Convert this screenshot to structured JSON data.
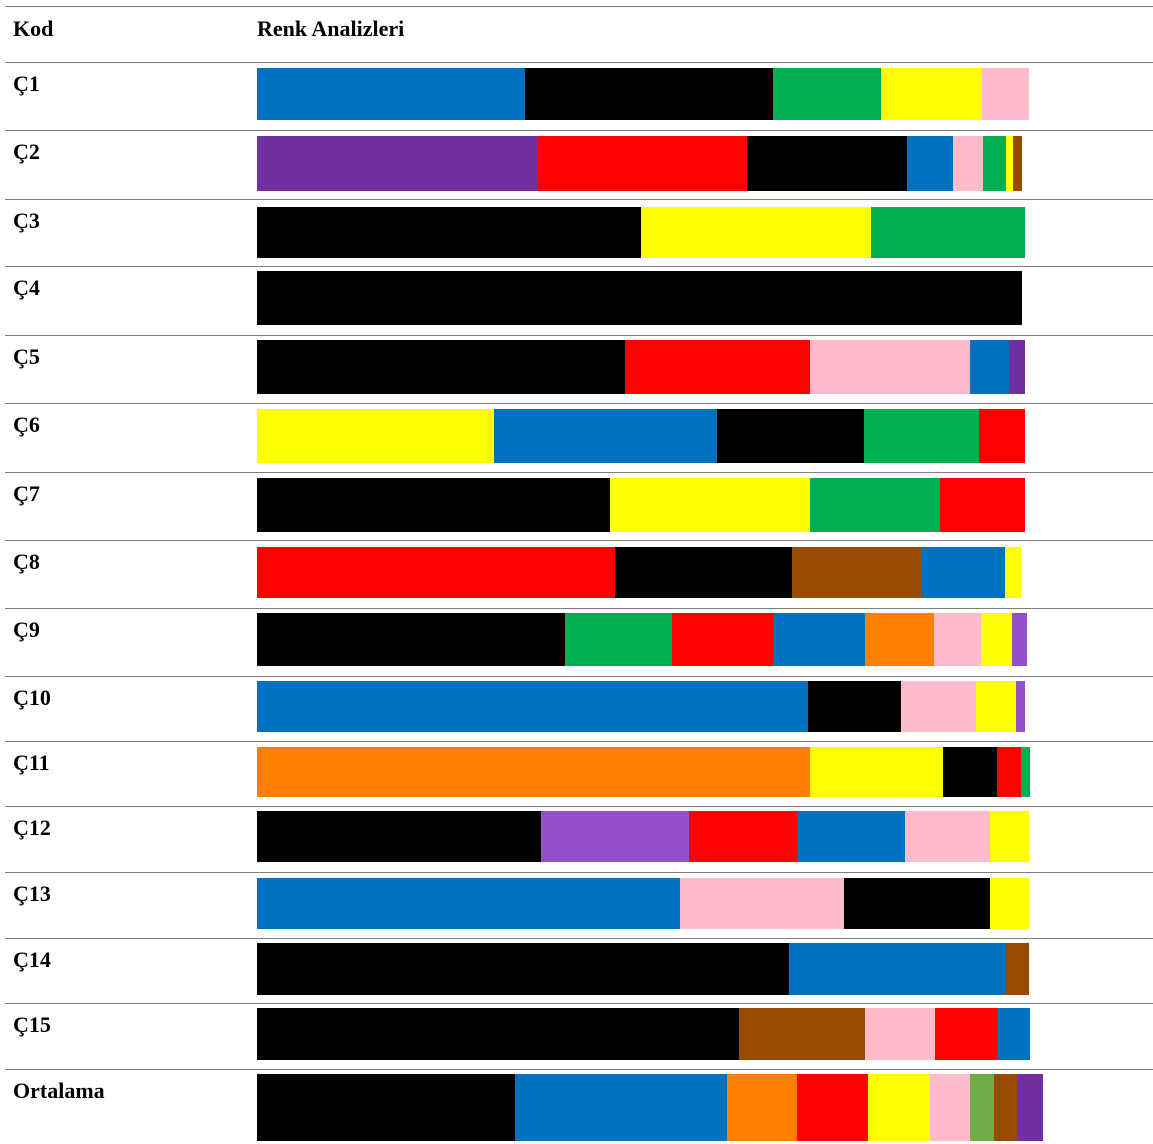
{
  "chart_data": {
    "type": "bar",
    "stacked": true,
    "orientation": "horizontal",
    "headers": {
      "code": "Kod",
      "analysis": "Renk Analizleri"
    },
    "palette": {
      "blue": "#0070C0",
      "black": "#000000",
      "green": "#00B050",
      "yellow": "#FFFF00",
      "pink": "#FFBBCC",
      "purple": "#7030A0",
      "red": "#FF0000",
      "orange": "#FF8000",
      "brown": "#984B00",
      "violet": "#9450C8",
      "olive": "#70AD47"
    },
    "rows": [
      {
        "code": "Ç1",
        "segments": [
          {
            "color": "blue",
            "value": 35.0
          },
          {
            "color": "black",
            "value": 32.3
          },
          {
            "color": "green",
            "value": 14.1
          },
          {
            "color": "yellow",
            "value": 13.1
          },
          {
            "color": "pink",
            "value": 6.1
          }
        ]
      },
      {
        "code": "Ç2",
        "segments": [
          {
            "color": "purple",
            "value": 36.7
          },
          {
            "color": "red",
            "value": 27.2
          },
          {
            "color": "black",
            "value": 20.8
          },
          {
            "color": "blue",
            "value": 6.0
          },
          {
            "color": "pink",
            "value": 4.0
          },
          {
            "color": "green",
            "value": 2.9
          },
          {
            "color": "yellow",
            "value": 1.0
          },
          {
            "color": "brown",
            "value": 1.2
          }
        ]
      },
      {
        "code": "Ç3",
        "segments": [
          {
            "color": "black",
            "value": 50.0
          },
          {
            "color": "yellow",
            "value": 30.0
          },
          {
            "color": "green",
            "value": 20.1
          }
        ]
      },
      {
        "code": "Ç4",
        "segments": [
          {
            "color": "black",
            "value": 99.7
          }
        ]
      },
      {
        "code": "Ç5",
        "segments": [
          {
            "color": "black",
            "value": 48.0
          },
          {
            "color": "red",
            "value": 24.1
          },
          {
            "color": "pink",
            "value": 20.8
          },
          {
            "color": "blue",
            "value": 5.1
          },
          {
            "color": "purple",
            "value": 2.1
          }
        ]
      },
      {
        "code": "Ç6",
        "segments": [
          {
            "color": "yellow",
            "value": 30.9
          },
          {
            "color": "blue",
            "value": 29.1
          },
          {
            "color": "black",
            "value": 19.1
          },
          {
            "color": "green",
            "value": 15.0
          },
          {
            "color": "red",
            "value": 6.0
          }
        ]
      },
      {
        "code": "Ç7",
        "segments": [
          {
            "color": "black",
            "value": 46.0
          },
          {
            "color": "yellow",
            "value": 26.1
          },
          {
            "color": "green",
            "value": 17.0
          },
          {
            "color": "red",
            "value": 11.1
          }
        ]
      },
      {
        "code": "Ç8",
        "segments": [
          {
            "color": "red",
            "value": 46.7
          },
          {
            "color": "black",
            "value": 23.0
          },
          {
            "color": "brown",
            "value": 17.0
          },
          {
            "color": "blue",
            "value": 10.8
          },
          {
            "color": "yellow",
            "value": 2.1
          }
        ]
      },
      {
        "code": "Ç9",
        "segments": [
          {
            "color": "black",
            "value": 40.1
          },
          {
            "color": "green",
            "value": 14.0
          },
          {
            "color": "red",
            "value": 13.2
          },
          {
            "color": "blue",
            "value": 12.0
          },
          {
            "color": "orange",
            "value": 9.0
          },
          {
            "color": "pink",
            "value": 6.1
          },
          {
            "color": "yellow",
            "value": 4.0
          },
          {
            "color": "violet",
            "value": 2.0
          }
        ]
      },
      {
        "code": "Ç10",
        "segments": [
          {
            "color": "blue",
            "value": 71.8
          },
          {
            "color": "black",
            "value": 12.1
          },
          {
            "color": "pink",
            "value": 9.9
          },
          {
            "color": "yellow",
            "value": 5.1
          },
          {
            "color": "violet",
            "value": 1.2
          }
        ]
      },
      {
        "code": "Ç11",
        "segments": [
          {
            "color": "orange",
            "value": 72.1
          },
          {
            "color": "yellow",
            "value": 17.4
          },
          {
            "color": "black",
            "value": 7.0
          },
          {
            "color": "red",
            "value": 3.1
          },
          {
            "color": "green",
            "value": 1.2
          }
        ]
      },
      {
        "code": "Ç12",
        "segments": [
          {
            "color": "black",
            "value": 37.0
          },
          {
            "color": "violet",
            "value": 19.3
          },
          {
            "color": "red",
            "value": 14.1
          },
          {
            "color": "blue",
            "value": 14.1
          },
          {
            "color": "pink",
            "value": 11.1
          },
          {
            "color": "yellow",
            "value": 5.1
          }
        ]
      },
      {
        "code": "Ç13",
        "segments": [
          {
            "color": "blue",
            "value": 55.2
          },
          {
            "color": "pink",
            "value": 21.3
          },
          {
            "color": "black",
            "value": 19.1
          },
          {
            "color": "yellow",
            "value": 5.1
          }
        ]
      },
      {
        "code": "Ç14",
        "segments": [
          {
            "color": "black",
            "value": 69.3
          },
          {
            "color": "blue",
            "value": 28.2
          },
          {
            "color": "brown",
            "value": 3.1
          }
        ]
      },
      {
        "code": "Ç15",
        "segments": [
          {
            "color": "black",
            "value": 62.9
          },
          {
            "color": "brown",
            "value": 16.4
          },
          {
            "color": "pink",
            "value": 9.1
          },
          {
            "color": "red",
            "value": 8.1
          },
          {
            "color": "blue",
            "value": 4.3
          }
        ]
      },
      {
        "code": "Ortalama",
        "segments": [
          {
            "color": "black",
            "value": 33.6
          },
          {
            "color": "blue",
            "value": 27.7
          },
          {
            "color": "orange",
            "value": 9.1
          },
          {
            "color": "red",
            "value": 9.3
          },
          {
            "color": "yellow",
            "value": 8.1
          },
          {
            "color": "pink",
            "value": 5.2
          },
          {
            "color": "olive",
            "value": 3.1
          },
          {
            "color": "brown",
            "value": 3.0
          },
          {
            "color": "purple",
            "value": 3.4
          }
        ]
      }
    ]
  }
}
